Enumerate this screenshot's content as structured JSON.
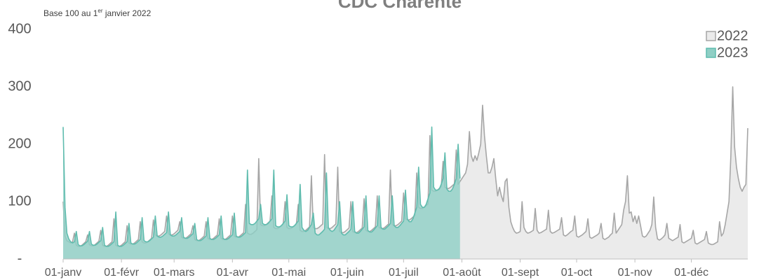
{
  "chart_data": {
    "type": "area",
    "title": "CDC Charente",
    "subtitle": [
      "Base 100 au 1",
      "er",
      " janvier 2022"
    ],
    "xlim": [
      1,
      365
    ],
    "xticks": [
      {
        "value": 1,
        "label": "01-janv"
      },
      {
        "value": 32,
        "label": "01-févr"
      },
      {
        "value": 60,
        "label": "01-mars"
      },
      {
        "value": 91,
        "label": "01-avr"
      },
      {
        "value": 121,
        "label": "01-mai"
      },
      {
        "value": 152,
        "label": "01-juin"
      },
      {
        "value": 182,
        "label": "01-juil"
      },
      {
        "value": 213,
        "label": "01-août"
      },
      {
        "value": 244,
        "label": "01-sept"
      },
      {
        "value": 274,
        "label": "01-oct"
      },
      {
        "value": 305,
        "label": "01-nov"
      },
      {
        "value": 335,
        "label": "01-déc"
      }
    ],
    "ylim": [
      0,
      400
    ],
    "yticks": [
      {
        "value": 0,
        "label": "-"
      },
      100,
      200,
      300,
      400
    ],
    "legend": "top-right",
    "x": [
      1,
      2,
      3,
      4,
      5,
      6,
      7,
      8,
      9,
      10,
      11,
      12,
      13,
      14,
      15,
      16,
      17,
      18,
      19,
      20,
      21,
      22,
      23,
      24,
      25,
      26,
      27,
      28,
      29,
      30,
      31,
      32,
      33,
      34,
      35,
      36,
      37,
      38,
      39,
      40,
      41,
      42,
      43,
      44,
      45,
      46,
      47,
      48,
      49,
      50,
      51,
      52,
      53,
      54,
      55,
      56,
      57,
      58,
      59,
      60,
      61,
      62,
      63,
      64,
      65,
      66,
      67,
      68,
      69,
      70,
      71,
      72,
      73,
      74,
      75,
      76,
      77,
      78,
      79,
      80,
      81,
      82,
      83,
      84,
      85,
      86,
      87,
      88,
      89,
      90,
      91,
      92,
      93,
      94,
      95,
      96,
      97,
      98,
      99,
      100,
      101,
      102,
      103,
      104,
      105,
      106,
      107,
      108,
      109,
      110,
      111,
      112,
      113,
      114,
      115,
      116,
      117,
      118,
      119,
      120,
      121,
      122,
      123,
      124,
      125,
      126,
      127,
      128,
      129,
      130,
      131,
      132,
      133,
      134,
      135,
      136,
      137,
      138,
      139,
      140,
      141,
      142,
      143,
      144,
      145,
      146,
      147,
      148,
      149,
      150,
      151,
      152,
      153,
      154,
      155,
      156,
      157,
      158,
      159,
      160,
      161,
      162,
      163,
      164,
      165,
      166,
      167,
      168,
      169,
      170,
      171,
      172,
      173,
      174,
      175,
      176,
      177,
      178,
      179,
      180,
      181,
      182,
      183,
      184,
      185,
      186,
      187,
      188,
      189,
      190,
      191,
      192,
      193,
      194,
      195,
      196,
      197,
      198,
      199,
      200,
      201,
      202,
      203,
      204,
      205,
      206,
      207,
      208,
      209,
      210,
      211,
      212,
      213,
      214,
      215,
      216,
      217,
      218,
      219,
      220,
      221,
      222,
      223,
      224,
      225,
      226,
      227,
      228,
      229,
      230,
      231,
      232,
      233,
      234,
      235,
      236,
      237,
      238,
      239,
      240,
      241,
      242,
      243,
      244,
      245,
      246,
      247,
      248,
      249,
      250,
      251,
      252,
      253,
      254,
      255,
      256,
      257,
      258,
      259,
      260,
      261,
      262,
      263,
      264,
      265,
      266,
      267,
      268,
      269,
      270,
      271,
      272,
      273,
      274,
      275,
      276,
      277,
      278,
      279,
      280,
      281,
      282,
      283,
      284,
      285,
      286,
      287,
      288,
      289,
      290,
      291,
      292,
      293,
      294,
      295,
      296,
      297,
      298,
      299,
      300,
      301,
      302,
      303,
      304,
      305,
      306,
      307,
      308,
      309,
      310,
      311,
      312,
      313,
      314,
      315,
      316,
      317,
      318,
      319,
      320,
      321,
      322,
      323,
      324,
      325,
      326,
      327,
      328,
      329,
      330,
      331,
      332,
      333,
      334,
      335,
      336,
      337,
      338,
      339,
      340,
      341,
      342,
      343,
      344,
      345,
      346,
      347,
      348,
      349,
      350,
      351,
      352,
      353,
      354,
      355,
      356,
      357,
      358,
      359,
      360,
      361,
      362,
      363,
      364,
      365
    ],
    "series": [
      {
        "name": "2022",
        "color": "#a6a6a6",
        "fill": "#ebebeb",
        "values": [
          100,
          40,
          32,
          30,
          28,
          30,
          45,
          24,
          22,
          22,
          24,
          27,
          30,
          42,
          25,
          23,
          23,
          25,
          28,
          31,
          50,
          24,
          22,
          22,
          24,
          27,
          30,
          70,
          24,
          22,
          22,
          24,
          27,
          30,
          58,
          28,
          26,
          26,
          28,
          31,
          34,
          65,
          30,
          28,
          28,
          30,
          33,
          36,
          68,
          42,
          40,
          40,
          42,
          45,
          48,
          75,
          44,
          42,
          42,
          44,
          47,
          50,
          65,
          38,
          36,
          36,
          38,
          41,
          44,
          58,
          34,
          32,
          32,
          34,
          37,
          40,
          65,
          36,
          34,
          34,
          36,
          39,
          42,
          70,
          36,
          34,
          34,
          36,
          39,
          42,
          75,
          40,
          38,
          38,
          40,
          43,
          46,
          95,
          45,
          43,
          43,
          45,
          48,
          51,
          175,
          60,
          58,
          58,
          60,
          63,
          66,
          110,
          55,
          53,
          53,
          55,
          58,
          61,
          100,
          55,
          53,
          53,
          55,
          58,
          61,
          95,
          50,
          48,
          48,
          50,
          53,
          56,
          145,
          55,
          53,
          53,
          55,
          58,
          61,
          182,
          55,
          53,
          53,
          55,
          58,
          61,
          160,
          48,
          46,
          46,
          48,
          51,
          54,
          100,
          48,
          46,
          46,
          48,
          51,
          54,
          105,
          50,
          48,
          48,
          50,
          53,
          56,
          110,
          55,
          53,
          53,
          55,
          58,
          61,
          155,
          60,
          58,
          58,
          60,
          63,
          66,
          115,
          70,
          68,
          68,
          70,
          73,
          76,
          150,
          90,
          88,
          88,
          90,
          93,
          96,
          215,
          120,
          118,
          118,
          120,
          123,
          126,
          170,
          125,
          123,
          123,
          125,
          128,
          131,
          190,
          130,
          135,
          140,
          145,
          150,
          165,
          222,
          180,
          170,
          180,
          172,
          185,
          200,
          268,
          215,
          180,
          150,
          150,
          160,
          175,
          140,
          110,
          125,
          110,
          100,
          135,
          140,
          90,
          65,
          55,
          48,
          45,
          46,
          48,
          100,
          55,
          48,
          45,
          46,
          48,
          50,
          88,
          50,
          45,
          46,
          48,
          50,
          52,
          85,
          48,
          45,
          46,
          48,
          50,
          52,
          72,
          42,
          40,
          42,
          45,
          48,
          50,
          75,
          40,
          38,
          40,
          42,
          45,
          48,
          70,
          38,
          36,
          38,
          40,
          42,
          45,
          62,
          36,
          34,
          36,
          38,
          42,
          45,
          80,
          45,
          50,
          55,
          60,
          85,
          100,
          145,
          80,
          82,
          65,
          75,
          62,
          75,
          58,
          40,
          38,
          40,
          45,
          50,
          60,
          108,
          55,
          35,
          33,
          35,
          38,
          42,
          62,
          36,
          34,
          32,
          34,
          36,
          38,
          60,
          30,
          28,
          30,
          32,
          34,
          36,
          50,
          28,
          26,
          28,
          30,
          32,
          34,
          48,
          28,
          26,
          25,
          26,
          28,
          30,
          65,
          40,
          45,
          60,
          80,
          100,
          180,
          300,
          195,
          160,
          140,
          125,
          118,
          125,
          130,
          228
        ]
      },
      {
        "name": "2023",
        "color": "#5fbcae",
        "fill": "#8fcfc5",
        "values": [
          230,
          90,
          45,
          35,
          30,
          28,
          30,
          48,
          25,
          23,
          23,
          25,
          28,
          31,
          48,
          26,
          24,
          24,
          26,
          29,
          32,
          55,
          24,
          22,
          22,
          24,
          27,
          30,
          82,
          24,
          22,
          22,
          24,
          27,
          30,
          62,
          28,
          26,
          26,
          28,
          31,
          34,
          72,
          32,
          30,
          30,
          32,
          35,
          38,
          75,
          40,
          38,
          38,
          40,
          43,
          46,
          82,
          42,
          40,
          40,
          42,
          45,
          48,
          72,
          38,
          36,
          36,
          38,
          41,
          44,
          62,
          34,
          32,
          32,
          34,
          37,
          40,
          72,
          36,
          34,
          34,
          36,
          39,
          42,
          75,
          36,
          34,
          34,
          36,
          39,
          42,
          80,
          40,
          38,
          38,
          40,
          43,
          46,
          155,
          62,
          60,
          60,
          62,
          66,
          70,
          95,
          62,
          60,
          60,
          62,
          66,
          70,
          155,
          58,
          56,
          56,
          58,
          62,
          66,
          112,
          58,
          56,
          56,
          58,
          62,
          66,
          130,
          55,
          50,
          48,
          50,
          55,
          60,
          80,
          45,
          42,
          42,
          45,
          48,
          52,
          150,
          55,
          50,
          48,
          50,
          55,
          60,
          100,
          45,
          42,
          42,
          45,
          48,
          52,
          100,
          48,
          45,
          45,
          48,
          52,
          56,
          110,
          50,
          47,
          47,
          50,
          54,
          58,
          110,
          55,
          52,
          52,
          55,
          58,
          62,
          110,
          58,
          55,
          55,
          58,
          62,
          66,
          120,
          70,
          65,
          65,
          70,
          80,
          90,
          160,
          95,
          90,
          90,
          95,
          105,
          115,
          230,
          125,
          120,
          120,
          122,
          130,
          140,
          185,
          122,
          118,
          118,
          122,
          130,
          140,
          200,
          140,
          null,
          null,
          null,
          null,
          null,
          null,
          null,
          null,
          null,
          null,
          null,
          null,
          null,
          null,
          null,
          null,
          null,
          null,
          null,
          null,
          null,
          null,
          null,
          null,
          null,
          null,
          null,
          null,
          null,
          null,
          null,
          null,
          null,
          null,
          null,
          null,
          null,
          null,
          null,
          null,
          null,
          null,
          null,
          null,
          null,
          null,
          null,
          null,
          null,
          null,
          null,
          null,
          null,
          null,
          null,
          null,
          null,
          null,
          null,
          null,
          null,
          null,
          null,
          null,
          null,
          null,
          null,
          null,
          null,
          null,
          null,
          null,
          null,
          null,
          null,
          null,
          null,
          null,
          null,
          null,
          null,
          null,
          null,
          null,
          null,
          null,
          null,
          null,
          null,
          null,
          null,
          null,
          null,
          null,
          null,
          null,
          null,
          null,
          null,
          null,
          null,
          null,
          null,
          null,
          null,
          null,
          null,
          null,
          null,
          null,
          null,
          null,
          null,
          null,
          null,
          null,
          null,
          null,
          null,
          null,
          null,
          null,
          null,
          null,
          null,
          null,
          null,
          null,
          null,
          null,
          null,
          null,
          null,
          null,
          null,
          null,
          null,
          null,
          null,
          null,
          null,
          null,
          null,
          null,
          null,
          null,
          null,
          null,
          null,
          null,
          null,
          null,
          null
        ]
      }
    ]
  }
}
